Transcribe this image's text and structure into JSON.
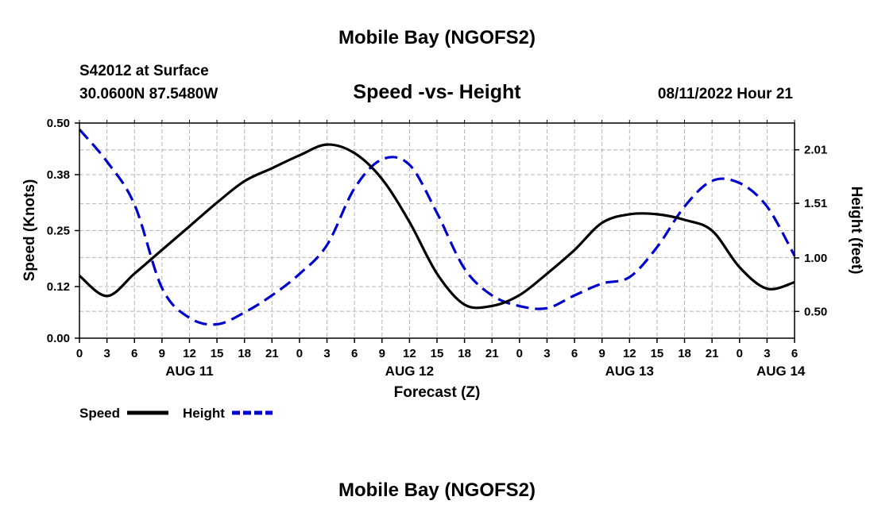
{
  "page": {
    "title_top": "Mobile Bay (NGOFS2)",
    "title_bottom": "Mobile Bay (NGOFS2)"
  },
  "header": {
    "station": "S42012 at Surface",
    "coords": "30.0600N  87.5480W",
    "plot_title": "Speed -vs- Height",
    "forecast_time": "08/11/2022 Hour 21"
  },
  "chart_data": {
    "type": "line",
    "title": "Speed -vs- Height",
    "xlabel": "Forecast (Z)",
    "ylabel": "Speed (Knots)",
    "y2label": "Height (feet)",
    "xlim": [
      0,
      78
    ],
    "ylim": [
      0.0,
      0.5
    ],
    "y2lim": [
      0.25,
      2.26
    ],
    "x_ticks": [
      0,
      3,
      6,
      9,
      12,
      15,
      18,
      21,
      24,
      27,
      30,
      33,
      36,
      39,
      42,
      45,
      48,
      51,
      54,
      57,
      60,
      63,
      66,
      69,
      72,
      75,
      78
    ],
    "x_tick_labels": [
      "0",
      "3",
      "6",
      "9",
      "12",
      "15",
      "18",
      "21",
      "0",
      "3",
      "6",
      "9",
      "12",
      "15",
      "18",
      "21",
      "0",
      "3",
      "6",
      "9",
      "12",
      "15",
      "18",
      "21",
      "0",
      "3",
      "6"
    ],
    "date_labels": [
      {
        "x": 12,
        "label": "AUG 11"
      },
      {
        "x": 36,
        "label": "AUG 12"
      },
      {
        "x": 60,
        "label": "AUG 13"
      },
      {
        "x": 76.5,
        "label": "AUG 14"
      }
    ],
    "y_ticks": [
      0.0,
      0.12,
      0.25,
      0.38,
      0.5
    ],
    "y_tick_labels": [
      "0.00",
      "0.12",
      "0.25",
      "0.38",
      "0.50"
    ],
    "y2_ticks": [
      0.5,
      1.0,
      1.51,
      2.01
    ],
    "y2_tick_labels": [
      "0.50",
      "1.00",
      "1.51",
      "2.01"
    ],
    "grid": true,
    "series": [
      {
        "name": "Speed",
        "axis": "left",
        "color": "#000000",
        "dash": "solid",
        "x": [
          0,
          3,
          6,
          9,
          12,
          15,
          18,
          21,
          24,
          27,
          30,
          33,
          36,
          39,
          42,
          45,
          48,
          51,
          54,
          57,
          60,
          63,
          66,
          69,
          72,
          75,
          78
        ],
        "values": [
          0.145,
          0.098,
          0.15,
          0.205,
          0.26,
          0.315,
          0.365,
          0.395,
          0.425,
          0.45,
          0.43,
          0.37,
          0.27,
          0.15,
          0.078,
          0.075,
          0.1,
          0.15,
          0.205,
          0.268,
          0.288,
          0.288,
          0.275,
          0.25,
          0.165,
          0.115,
          0.13
        ]
      },
      {
        "name": "Height",
        "axis": "right",
        "color": "#0000cc",
        "dash": "dashed",
        "x": [
          0,
          3,
          6,
          9,
          12,
          15,
          18,
          21,
          24,
          27,
          30,
          33,
          36,
          39,
          42,
          45,
          48,
          51,
          54,
          57,
          60,
          63,
          66,
          69,
          72,
          75,
          78
        ],
        "values": [
          2.2,
          1.9,
          1.5,
          0.72,
          0.44,
          0.38,
          0.49,
          0.65,
          0.85,
          1.12,
          1.65,
          1.92,
          1.87,
          1.42,
          0.9,
          0.65,
          0.55,
          0.53,
          0.65,
          0.76,
          0.82,
          1.1,
          1.48,
          1.72,
          1.7,
          1.48,
          1.02
        ]
      }
    ],
    "legend": {
      "placement": "bottom-left",
      "items": [
        {
          "label": "Speed",
          "color": "#000000",
          "dash": "solid"
        },
        {
          "label": "Height",
          "color": "#0000cc",
          "dash": "dashed"
        }
      ]
    }
  }
}
